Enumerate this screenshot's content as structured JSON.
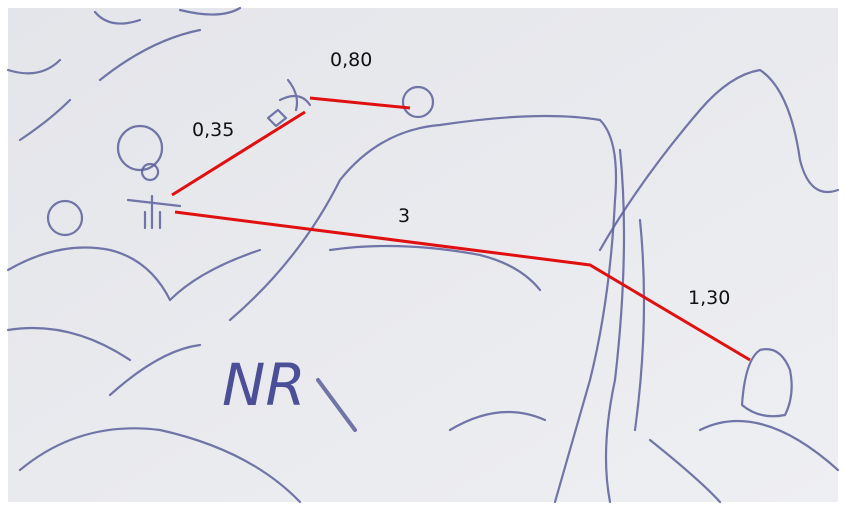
{
  "labels": [
    {
      "text": "0,80"
    },
    {
      "text": "0,35"
    },
    {
      "text": "3"
    },
    {
      "text": "1,30"
    }
  ],
  "sketch_text": "NR"
}
